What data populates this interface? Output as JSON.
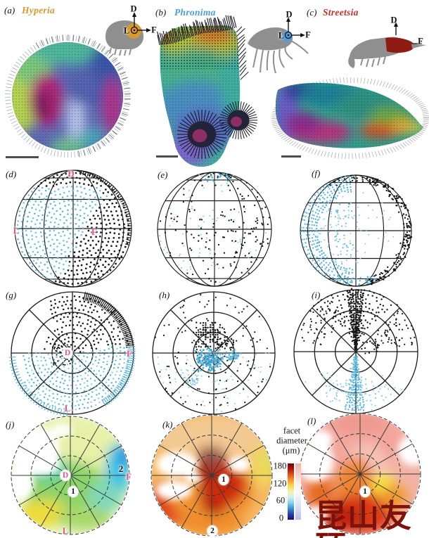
{
  "letters": {
    "a": "(a)",
    "b": "(b)",
    "c": "(c)",
    "d": "(d)",
    "e": "(e)",
    "f": "(f)",
    "g": "(g)",
    "h": "(h)",
    "i": "(i)",
    "j": "(j)",
    "k": "(k)",
    "l": "(l)"
  },
  "species": {
    "hyperia": {
      "label": "Hyperia",
      "color": "#d7992f"
    },
    "phronima": {
      "label": "Phronima",
      "color": "#4f9bd5"
    },
    "streetsia": {
      "label": "Streetsia",
      "color": "#c43029"
    }
  },
  "axes": {
    "dorsal": "D",
    "lateral": "L",
    "frontal": "F",
    "label_color": "#e0568c",
    "inset_label_color": "#111111"
  },
  "rings": {
    "one": "1",
    "two": "2"
  },
  "colorbar": {
    "title_line1": "facet",
    "title_line2": "diameter",
    "title_line3": "(μm)",
    "ticks": [
      "180",
      "120",
      "60",
      "0"
    ],
    "saturated_stops": [
      "#6e0202",
      "#b51309",
      "#e44f1a",
      "#f59a2e",
      "#f6d94a",
      "#f5f2b0",
      "#d2eff0",
      "#7fd2ec",
      "#3b8fd8",
      "#2a3cb4",
      "#16126e"
    ],
    "pale_stops": [
      "#eab2a8",
      "#f2cec6",
      "#f9ebe5",
      "#fbfaf8",
      "#e7ebf7",
      "#cfd6f1",
      "#b7bfe9"
    ]
  },
  "dots": {
    "cyan": "#53b5da",
    "cyan_pale": "#8fcde4",
    "black": "#161616"
  },
  "grid_color": "#1b1b1b",
  "silhouette_color": "#8f8f8f",
  "eye_a_colors": [
    "#b5d44f",
    "#7cc87c",
    "#4fb89a",
    "#3a55a8",
    "#b03088",
    "#b02878",
    "#7a1a5a",
    "#b8c6ea",
    "#5564b0",
    "#6cc08a",
    "#4aa8b8"
  ],
  "eye_a_base": "#5f6ab4",
  "eye_b_colors": [
    "#b6c83e",
    "#e07828",
    "#d84018",
    "#49b089",
    "#4a8fbf",
    "#5a6fc2",
    "#7a68c8",
    "#3fae9e"
  ],
  "eye_b_base": "#3fae9e",
  "eye_c_colors": [
    "#6a5bc8",
    "#7a6ad0",
    "#2a3f96",
    "#1f7e96",
    "#2f8f7e",
    "#6aa83e",
    "#b8307e",
    "#8a2a8a",
    "#d84a20",
    "#e8a830",
    "#f0e23c"
  ],
  "eye_c_base": "#2f9e8e",
  "heat_j": {
    "base": "#eef6c4",
    "colors": [
      "#e6f0a6",
      "#8bd468",
      "#5ecfa0",
      "#ecdc3a",
      "#a8d86a",
      "#3cc3e8",
      "#2b8fe0",
      "#7fd8b8"
    ]
  },
  "heat_k": {
    "base": "#f6b965",
    "colors": [
      "#f3c993",
      "#e0471d",
      "#f0922e",
      "#a81408",
      "#b01a0a",
      "#9a564e",
      "#cd2b10",
      "#edd95a",
      "#cfe070",
      "#ef8c2a"
    ]
  },
  "heat_l": {
    "base": "#f2b3a6",
    "colors": [
      "#f3a59b",
      "#ee9a90",
      "#f4c3b8",
      "#ef8430",
      "#dc3a12",
      "#c22408",
      "#f5e83e",
      "#ef9a2f",
      "#e86a20"
    ]
  },
  "watermark": {
    "text": "昆山友硕",
    "color": "#7c120a"
  }
}
